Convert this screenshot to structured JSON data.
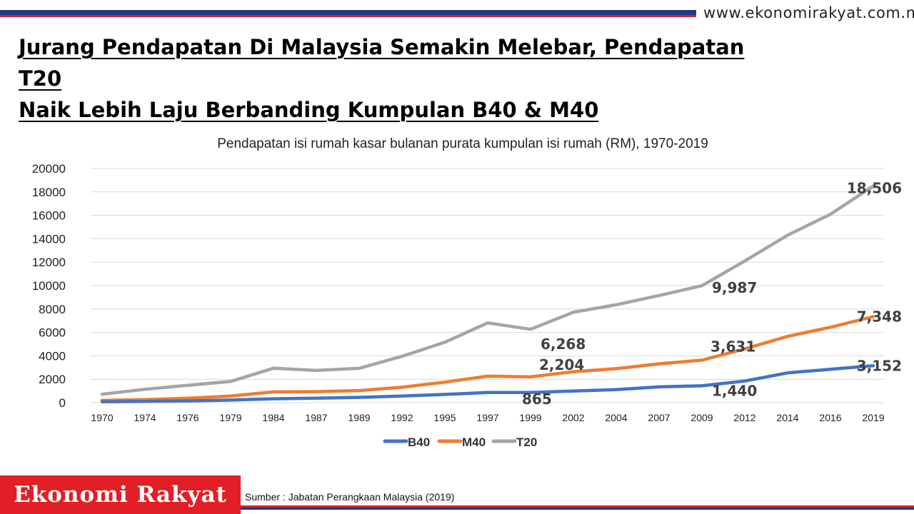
{
  "site_url": "www.ekonomirakyat.com.my",
  "headline": {
    "line1": "Jurang Pendapatan Di Malaysia Semakin Melebar, Pendapatan T20",
    "line2": "Naik Lebih Laju Berbanding Kumpulan B40 & M40"
  },
  "brand": "Ekonomi Rakyat",
  "source": "Sumber  : Jabatan Perangkaan Malaysia (2019)",
  "colors": {
    "B40": "#4472c4",
    "M40": "#ed7d31",
    "T20": "#a5a5a5",
    "accent_red": "#e21f26",
    "accent_blue": "#1f3a8c"
  },
  "chart_data": {
    "type": "line",
    "title": "Pendapatan isi rumah kasar bulanan purata kumpulan isi rumah (RM), 1970-2019",
    "xlabel": "",
    "ylabel": "",
    "ylim": [
      0,
      20000
    ],
    "yticks": [
      "0",
      "2000",
      "4000",
      "6000",
      "8000",
      "10000",
      "12000",
      "14000",
      "16000",
      "18000",
      "20000"
    ],
    "grid": true,
    "legend_position": "bottom",
    "categories": [
      "1970",
      "1974",
      "1976",
      "1979",
      "1984",
      "1987",
      "1989",
      "1992",
      "1995",
      "1997",
      "1999",
      "2002",
      "2004",
      "2007",
      "2009",
      "2012",
      "2014",
      "2016",
      "2019"
    ],
    "series": [
      {
        "name": "B40",
        "values": [
          76,
          110,
          145,
          220,
          330,
          380,
          450,
          570,
          700,
          870,
          865,
          990,
          1110,
          1350,
          1440,
          1850,
          2540,
          2850,
          3152
        ]
      },
      {
        "name": "M40",
        "values": [
          190,
          260,
          370,
          560,
          920,
          940,
          1030,
          1320,
          1750,
          2260,
          2204,
          2640,
          2900,
          3320,
          3631,
          4590,
          5660,
          6440,
          7348
        ]
      },
      {
        "name": "T20",
        "values": [
          720,
          1140,
          1480,
          1810,
          2940,
          2750,
          2930,
          3960,
          5160,
          6810,
          6268,
          7720,
          8360,
          9150,
          9987,
          12100,
          14300,
          16090,
          18506
        ]
      }
    ],
    "annotations": [
      {
        "series": "B40",
        "category": "1999",
        "text": "865"
      },
      {
        "series": "B40",
        "category": "2009",
        "text": "1,440"
      },
      {
        "series": "B40",
        "category": "2019",
        "text": "3,152"
      },
      {
        "series": "M40",
        "category": "1999",
        "text": "2,204"
      },
      {
        "series": "M40",
        "category": "2009",
        "text": "3,631"
      },
      {
        "series": "M40",
        "category": "2019",
        "text": "7,348"
      },
      {
        "series": "T20",
        "category": "1999",
        "text": "6,268"
      },
      {
        "series": "T20",
        "category": "2009",
        "text": "9,987"
      },
      {
        "series": "T20",
        "category": "2019",
        "text": "18,506"
      }
    ]
  }
}
